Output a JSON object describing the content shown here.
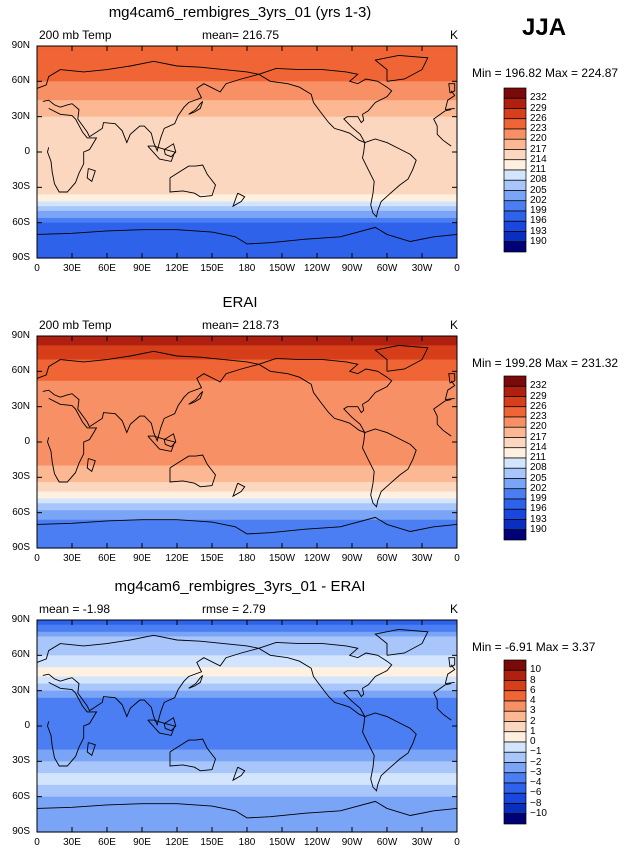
{
  "season": "JJA",
  "colors": {
    "abs": [
      "#000077",
      "#0a2fbf",
      "#1a47dd",
      "#2f62ea",
      "#4a7ef2",
      "#7aa4f6",
      "#a8c6fa",
      "#d3e4fd",
      "#fff0e0",
      "#fcd7bf",
      "#fbb893",
      "#f89066",
      "#f06535",
      "#d63f1a",
      "#b02010",
      "#7a0a0a"
    ],
    "diff": [
      "#000077",
      "#0a2fbf",
      "#1a47dd",
      "#2f62ea",
      "#4a7ef2",
      "#7aa4f6",
      "#a8c6fa",
      "#d3e4fd",
      "#fff0e0",
      "#fcd7bf",
      "#fbb893",
      "#f89066",
      "#f06535",
      "#d63f1a",
      "#b02010",
      "#7a0a0a"
    ]
  },
  "panels": [
    {
      "title": "mg4cam6_rembigres_3yrs_01 (yrs 1-3)",
      "left_label": "200 mb Temp",
      "center_label": "mean= 216.75",
      "units": "K",
      "minmax": "Min = 196.82 Max = 224.87",
      "colorbar_labels": [
        "232",
        "229",
        "226",
        "223",
        "220",
        "217",
        "214",
        "211",
        "208",
        "205",
        "202",
        "199",
        "196",
        "193",
        "190"
      ]
    },
    {
      "title": "ERAI",
      "left_label": "200 mb Temp",
      "center_label": "mean= 218.73",
      "units": "K",
      "minmax": "Min = 199.28 Max = 231.32",
      "colorbar_labels": [
        "232",
        "229",
        "226",
        "223",
        "220",
        "217",
        "214",
        "211",
        "208",
        "205",
        "202",
        "199",
        "196",
        "193",
        "190"
      ]
    },
    {
      "title": "mg4cam6_rembigres_3yrs_01 - ERAI",
      "left_label": "mean =  -1.98",
      "center_label": "rmse =    2.79",
      "units": "K",
      "minmax": "Min =  -6.91 Max =    3.37",
      "colorbar_labels": [
        "10",
        "8",
        "6",
        "4",
        "3",
        "2",
        "1",
        "0",
        "−1",
        "−2",
        "−3",
        "−4",
        "−6",
        "−8",
        "−10"
      ]
    }
  ],
  "lat_labels": [
    "90N",
    "60N",
    "30N",
    "0",
    "30S",
    "60S",
    "90S"
  ],
  "lon_labels": [
    "0",
    "30E",
    "60E",
    "90E",
    "120E",
    "150E",
    "180",
    "150W",
    "120W",
    "90W",
    "60W",
    "30W",
    "0"
  ],
  "chart_data": [
    {
      "type": "heatmap",
      "title": "mg4cam6_rembigres_3yrs_01 (yrs 1-3)",
      "variable": "200 mb Temp",
      "units": "K",
      "mean": 216.75,
      "min": 196.82,
      "max": 224.87,
      "levels": [
        190,
        193,
        196,
        199,
        202,
        205,
        208,
        211,
        214,
        217,
        220,
        223,
        226,
        229,
        232
      ],
      "lat_range": [
        -90,
        90
      ],
      "lon_range": [
        0,
        360
      ],
      "zonal_profile": {
        "lat": [
          -90,
          -75,
          -60,
          -50,
          -40,
          -30,
          -20,
          0,
          20,
          30,
          45,
          60,
          75,
          90
        ],
        "value": [
          196,
          196,
          199,
          205,
          212,
          216,
          217,
          216,
          216,
          217,
          220,
          223,
          224,
          224
        ]
      }
    },
    {
      "type": "heatmap",
      "title": "ERAI",
      "variable": "200 mb Temp",
      "units": "K",
      "mean": 218.73,
      "min": 199.28,
      "max": 231.32,
      "levels": [
        190,
        193,
        196,
        199,
        202,
        205,
        208,
        211,
        214,
        217,
        220,
        223,
        226,
        229,
        232
      ],
      "lat_range": [
        -90,
        90
      ],
      "lon_range": [
        0,
        360
      ],
      "zonal_profile": {
        "lat": [
          -90,
          -75,
          -60,
          -50,
          -40,
          -30,
          -20,
          0,
          20,
          30,
          45,
          60,
          75,
          90
        ],
        "value": [
          199,
          200,
          203,
          210,
          215,
          218,
          220,
          220,
          220,
          221,
          222,
          224,
          227,
          231
        ]
      }
    },
    {
      "type": "heatmap",
      "title": "mg4cam6_rembigres_3yrs_01 - ERAI",
      "variable": "200 mb Temp difference",
      "units": "K",
      "mean": -1.98,
      "rmse": 2.79,
      "min": -6.91,
      "max": 3.37,
      "levels": [
        -10,
        -8,
        -6,
        -4,
        -3,
        -2,
        -1,
        0,
        1,
        2,
        3,
        4,
        6,
        8,
        10
      ],
      "lat_range": [
        -90,
        90
      ],
      "lon_range": [
        0,
        360
      ],
      "zonal_profile": {
        "lat": [
          -90,
          -75,
          -60,
          -50,
          -40,
          -30,
          -20,
          0,
          20,
          30,
          45,
          60,
          75,
          90
        ],
        "value": [
          -2,
          -3,
          -2,
          -1,
          -1,
          -2,
          -3,
          -3.5,
          -3.5,
          -2,
          0.5,
          -1,
          -2,
          -5
        ]
      }
    }
  ]
}
